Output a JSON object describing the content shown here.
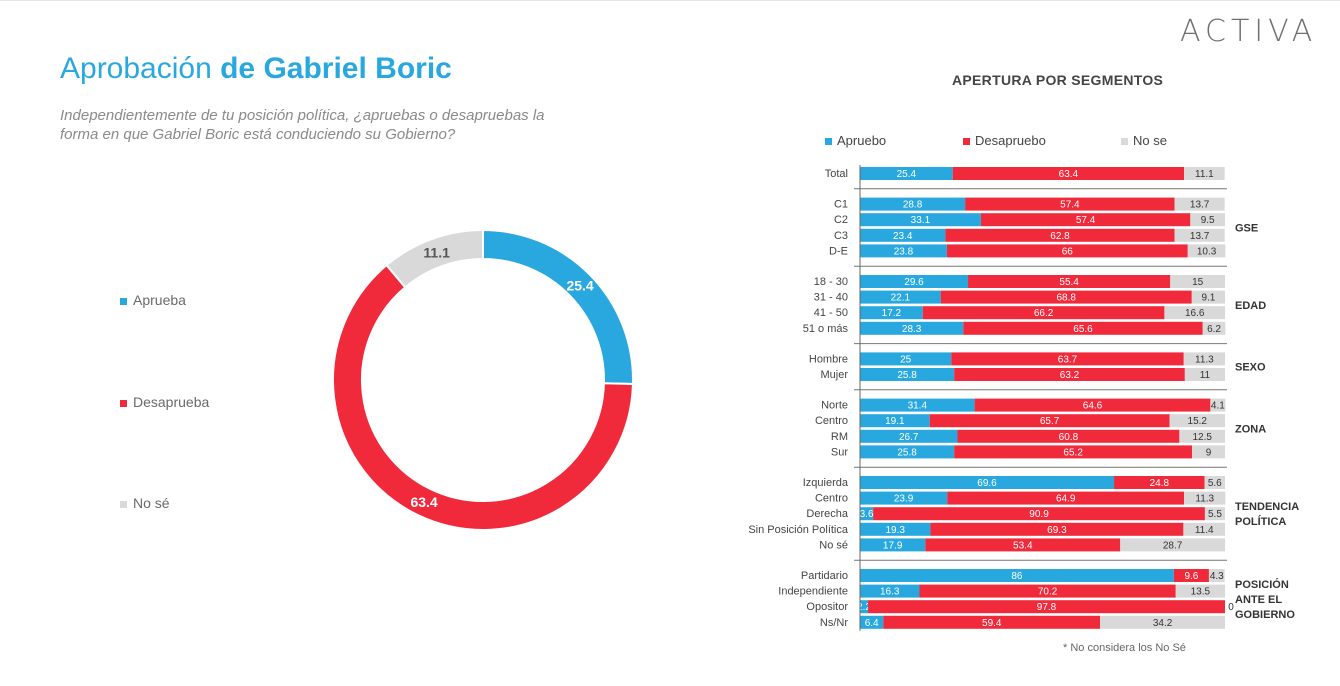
{
  "header": {
    "logo": "ACTIVA",
    "title_plain": "Aprobación ",
    "title_bold": "de Gabriel Boric",
    "subtitle": "Independientemente de tu posición política, ¿apruebas o desapruebas la forma en que Gabriel Boric está conduciendo su Gobierno?"
  },
  "colors": {
    "approve": "#29a8e0",
    "disapprove": "#f02a3b",
    "unknown": "#d9d9d9"
  },
  "donut_legend": [
    "Aprueba",
    "Desaprueba",
    "No sé"
  ],
  "segments_title": "APERTURA POR SEGMENTOS",
  "bar_legend": [
    "Apruebo",
    "Desapruebo",
    "No se"
  ],
  "footnote": "* No considera los No Sé",
  "chart_data": [
    {
      "type": "pie",
      "subtype": "donut",
      "labels": [
        "Aprueba",
        "Desaprueba",
        "No sé"
      ],
      "values": [
        25.4,
        63.4,
        11.1
      ]
    },
    {
      "type": "bar",
      "orientation": "horizontal",
      "stacked": true,
      "title": "APERTURA POR SEGMENTOS",
      "series_names": [
        "Apruebo",
        "Desapruebo",
        "No se"
      ],
      "groups": [
        {
          "name": "",
          "rows": [
            {
              "label": "Total",
              "values": [
                25.4,
                63.4,
                11.1
              ]
            }
          ]
        },
        {
          "name": "GSE",
          "rows": [
            {
              "label": "C1",
              "values": [
                28.8,
                57.4,
                13.7
              ]
            },
            {
              "label": "C2",
              "values": [
                33.1,
                57.4,
                9.5
              ]
            },
            {
              "label": "C3",
              "values": [
                23.4,
                62.8,
                13.7
              ]
            },
            {
              "label": "D-E",
              "values": [
                23.8,
                66,
                10.3
              ]
            }
          ]
        },
        {
          "name": "EDAD",
          "rows": [
            {
              "label": "18 - 30",
              "values": [
                29.6,
                55.4,
                15
              ]
            },
            {
              "label": "31 - 40",
              "values": [
                22.1,
                68.8,
                9.1
              ]
            },
            {
              "label": "41 - 50",
              "values": [
                17.2,
                66.2,
                16.6
              ]
            },
            {
              "label": "51 o más",
              "values": [
                28.3,
                65.6,
                6.2
              ]
            }
          ]
        },
        {
          "name": "SEXO",
          "rows": [
            {
              "label": "Hombre",
              "values": [
                25,
                63.7,
                11.3
              ]
            },
            {
              "label": "Mujer",
              "values": [
                25.8,
                63.2,
                11
              ]
            }
          ]
        },
        {
          "name": "ZONA",
          "rows": [
            {
              "label": "Norte",
              "values": [
                31.4,
                64.6,
                4.1
              ]
            },
            {
              "label": "Centro",
              "values": [
                19.1,
                65.7,
                15.2
              ]
            },
            {
              "label": "RM",
              "values": [
                26.7,
                60.8,
                12.5
              ]
            },
            {
              "label": "Sur",
              "values": [
                25.8,
                65.2,
                9
              ]
            }
          ]
        },
        {
          "name": "TENDENCIA POLÍTICA",
          "rows": [
            {
              "label": "Izquierda",
              "values": [
                69.6,
                24.8,
                5.6
              ]
            },
            {
              "label": "Centro",
              "values": [
                23.9,
                64.9,
                11.3
              ]
            },
            {
              "label": "Derecha",
              "values": [
                3.6,
                90.9,
                5.5
              ]
            },
            {
              "label": "Sin Posición Política",
              "values": [
                19.3,
                69.3,
                11.4
              ]
            },
            {
              "label": "No sé",
              "values": [
                17.9,
                53.4,
                28.7
              ]
            }
          ]
        },
        {
          "name": "POSICIÓN ANTE EL GOBIERNO",
          "rows": [
            {
              "label": "Partidario",
              "values": [
                86,
                9.6,
                4.3
              ]
            },
            {
              "label": "Independiente",
              "values": [
                16.3,
                70.2,
                13.5
              ]
            },
            {
              "label": "Opositor",
              "values": [
                2.2,
                97.8,
                0
              ]
            },
            {
              "label": "Ns/Nr",
              "values": [
                6.4,
                59.4,
                34.2
              ]
            }
          ]
        }
      ]
    }
  ]
}
